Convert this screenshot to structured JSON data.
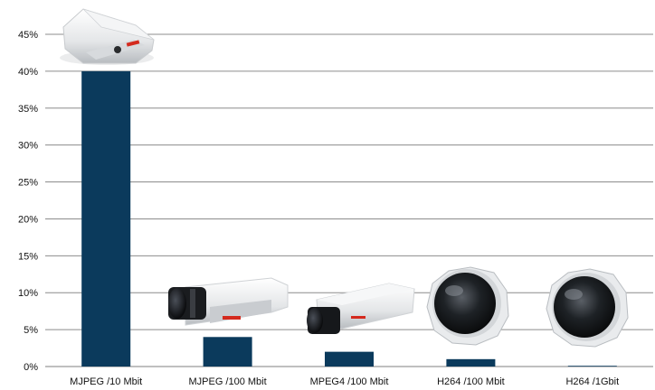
{
  "chart_data": {
    "type": "bar",
    "categories": [
      "MJPEG /10 Mbit",
      "MJPEG /100 Mbit",
      "MPEG4 /100 Mbit",
      "H264 /100 Mbit",
      "H264 /1Gbit"
    ],
    "values": [
      40,
      4,
      2,
      1,
      0.1
    ],
    "ylim": [
      0,
      45
    ],
    "yticks": [
      "0%",
      "5%",
      "10%",
      "15%",
      "20%",
      "25%",
      "30%",
      "35%",
      "40%",
      "45%"
    ],
    "grid": true,
    "bar_color": "#0b3a5c",
    "product_images": [
      "box-camera",
      "fixed-camera-with-housing",
      "compact-box-camera",
      "dome-camera",
      "dome-camera"
    ]
  }
}
